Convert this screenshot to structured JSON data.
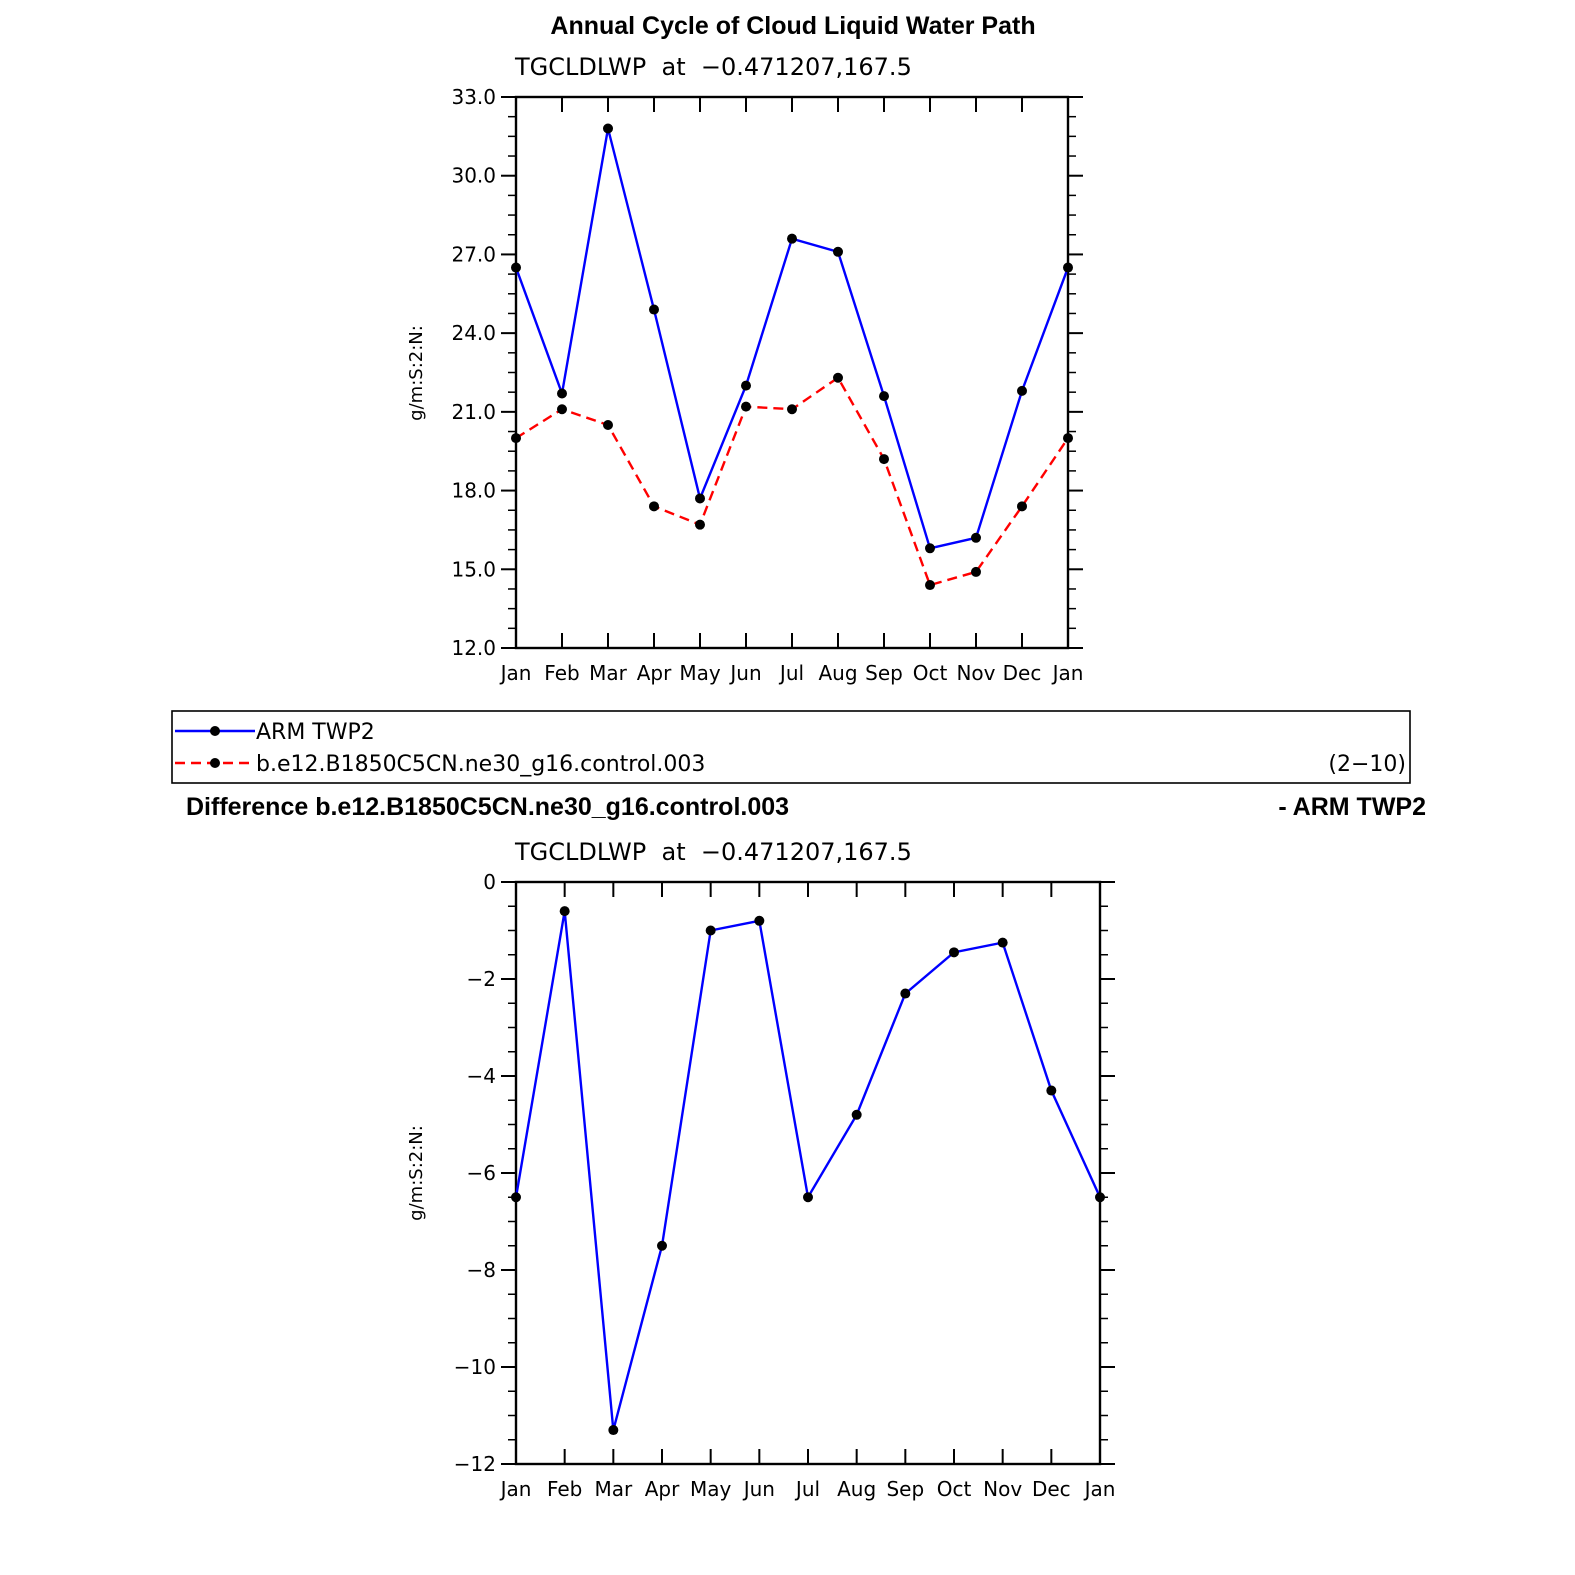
{
  "colors": {
    "obs": "#0000ff",
    "model": "#ff0000",
    "marker": "#000000",
    "axis": "#000000"
  },
  "legend": {
    "items": [
      "ARM TWP2",
      "b.e12.B1850C5CN.ne30_g16.control.003"
    ],
    "note": "(2−10)"
  },
  "chart_data": [
    {
      "type": "line",
      "title": "Annual Cycle of Cloud Liquid Water Path",
      "subtitle": "TGCLDLWP  at  −0.471207,167.5",
      "ylabel": "g/m:S:2:N:",
      "categories": [
        "Jan",
        "Feb",
        "Mar",
        "Apr",
        "May",
        "Jun",
        "Jul",
        "Aug",
        "Sep",
        "Oct",
        "Nov",
        "Dec",
        "Jan"
      ],
      "ylim": [
        12.0,
        33.0
      ],
      "yticks": [
        12.0,
        15.0,
        18.0,
        21.0,
        24.0,
        27.0,
        30.0,
        33.0
      ],
      "ytick_labels": [
        "12.0",
        "15.0",
        "18.0",
        "21.0",
        "24.0",
        "27.0",
        "30.0",
        "33.0"
      ],
      "series": [
        {
          "name": "ARM TWP2",
          "style": "solid",
          "values": [
            26.5,
            21.7,
            31.8,
            24.9,
            17.7,
            22.0,
            27.6,
            27.1,
            21.6,
            15.8,
            16.2,
            21.8,
            26.5
          ]
        },
        {
          "name": "b.e12.B1850C5CN.ne30_g16.control.003",
          "style": "dashed",
          "values": [
            20.0,
            21.1,
            20.5,
            17.4,
            16.7,
            21.2,
            21.1,
            22.3,
            19.2,
            14.4,
            14.9,
            17.4,
            20.0
          ]
        }
      ]
    },
    {
      "type": "line",
      "title_left": "Difference b.e12.B1850C5CN.ne30_g16.control.003",
      "title_right": "- ARM TWP2",
      "subtitle": "TGCLDLWP  at  −0.471207,167.5",
      "ylabel": "g/m:S:2:N:",
      "categories": [
        "Jan",
        "Feb",
        "Mar",
        "Apr",
        "May",
        "Jun",
        "Jul",
        "Aug",
        "Sep",
        "Oct",
        "Nov",
        "Dec",
        "Jan"
      ],
      "ylim": [
        -12,
        0
      ],
      "yticks": [
        -12,
        -10,
        -8,
        -6,
        -4,
        -2,
        0
      ],
      "ytick_labels": [
        "−12",
        "−10",
        "−8",
        "−6",
        "−4",
        "−2",
        "0"
      ],
      "series": [
        {
          "style": "solid",
          "values": [
            -6.5,
            -0.6,
            -11.3,
            -7.5,
            -1.0,
            -0.8,
            -6.5,
            -4.8,
            -2.3,
            -1.45,
            -1.25,
            -4.3,
            -6.5
          ]
        }
      ]
    }
  ]
}
